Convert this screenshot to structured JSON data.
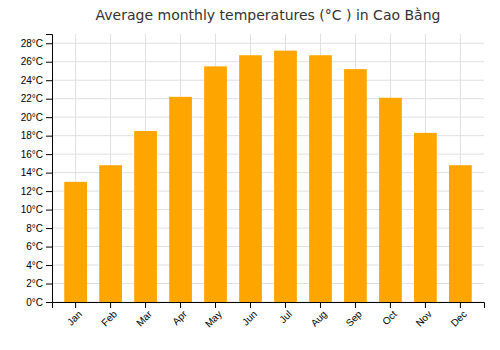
{
  "chart_data": {
    "type": "bar",
    "title": "Average monthly temperatures (°C ) in Cao Bằng",
    "categories": [
      "Jan",
      "Feb",
      "Mar",
      "Apr",
      "May",
      "Jun",
      "Jul",
      "Aug",
      "Sep",
      "Oct",
      "Nov",
      "Dec"
    ],
    "values": [
      13,
      14.8,
      18.5,
      22.2,
      25.5,
      26.7,
      27.2,
      26.7,
      25.2,
      22.1,
      18.3,
      14.8
    ],
    "color": "#FFA500",
    "ylim": [
      0,
      29
    ],
    "yticks": [
      {
        "value": 0,
        "label": "0°C"
      },
      {
        "value": 2,
        "label": "2°C"
      },
      {
        "value": 4,
        "label": "4°C"
      },
      {
        "value": 6,
        "label": "6°C"
      },
      {
        "value": 8,
        "label": "8°C"
      },
      {
        "value": 10,
        "label": "10°C"
      },
      {
        "value": 12,
        "label": "12°C"
      },
      {
        "value": 14,
        "label": "14°C"
      },
      {
        "value": 16,
        "label": "16°C"
      },
      {
        "value": 18,
        "label": "18°C"
      },
      {
        "value": 20,
        "label": "20°C"
      },
      {
        "value": 22,
        "label": "22°C"
      },
      {
        "value": 24,
        "label": "24°C"
      },
      {
        "value": 26,
        "label": "26°C"
      },
      {
        "value": 28,
        "label": "28°C"
      }
    ],
    "grid": true
  }
}
